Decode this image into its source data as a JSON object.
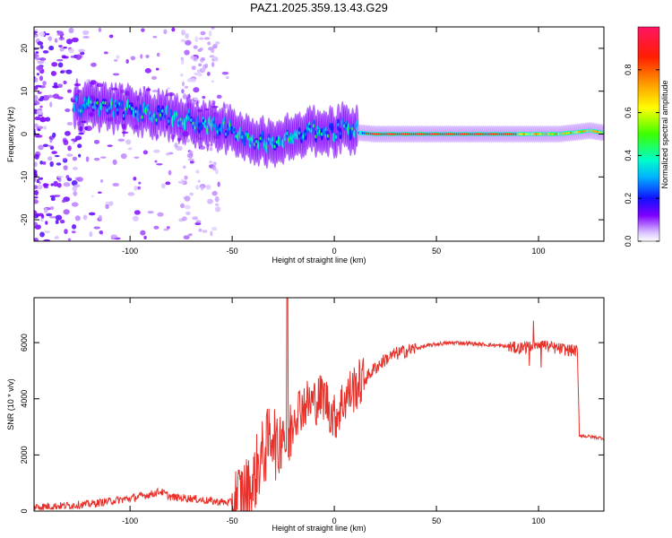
{
  "title": "PAZ1.2025.359.13.43.G29",
  "chart_data": [
    {
      "type": "heatmap",
      "xlabel": "Height of straight line (km)",
      "ylabel": "Frequency (Hz)",
      "xlim": [
        -147,
        132
      ],
      "ylim": [
        -25,
        25
      ],
      "xticks": [
        -100,
        -50,
        0,
        50,
        100
      ],
      "yticks": [
        -20,
        -10,
        0,
        10,
        20
      ],
      "colorbar": {
        "label": "Normalized spectral amplitude",
        "range": [
          0,
          1
        ],
        "ticks": [
          0.0,
          0.2,
          0.4,
          0.6,
          0.8
        ]
      },
      "ridge": {
        "x": [
          -140,
          -120,
          -110,
          -100,
          -90,
          -80,
          -70,
          -60,
          -50,
          -40,
          -35,
          -30,
          -27,
          -20,
          -10,
          0,
          5,
          10,
          12,
          20,
          30,
          50,
          70,
          90,
          100,
          110,
          120,
          125,
          132
        ],
        "frequency": [
          8,
          6.5,
          6,
          5.5,
          5,
          4,
          3,
          2,
          0.5,
          -1,
          -1.5,
          -2,
          -1,
          -0.5,
          0.5,
          0.5,
          1.5,
          1,
          0.3,
          0,
          0,
          0,
          0,
          0,
          0,
          0,
          0.5,
          0.8,
          0.3
        ]
      }
    },
    {
      "type": "line",
      "xlabel": "Height of straight line (km)",
      "ylabel": "SNR (10 * v/v)",
      "xlim": [
        -147,
        132
      ],
      "ylim": [
        0,
        7600
      ],
      "xticks": [
        -100,
        -50,
        0,
        50,
        100
      ],
      "yticks": [
        0,
        2000,
        4000,
        6000
      ],
      "series": [
        {
          "name": "SNR",
          "color": "#e8302a",
          "x": [
            -147,
            -130,
            -120,
            -110,
            -100,
            -90,
            -85,
            -80,
            -70,
            -60,
            -50,
            -45,
            -40,
            -38,
            -35,
            -32,
            -30,
            -28,
            -25,
            -23,
            -22,
            -20,
            -15,
            -10,
            -5,
            0,
            5,
            10,
            15,
            20,
            25,
            30,
            40,
            50,
            60,
            70,
            80,
            90,
            95,
            100,
            105,
            110,
            119,
            120,
            125,
            132
          ],
          "y": [
            150,
            200,
            250,
            350,
            450,
            600,
            700,
            500,
            450,
            350,
            300,
            600,
            800,
            1500,
            2000,
            2500,
            3000,
            2000,
            3200,
            1800,
            2600,
            3500,
            3800,
            3900,
            4100,
            3300,
            4000,
            4400,
            4700,
            5100,
            5400,
            5600,
            5800,
            5950,
            6000,
            5950,
            5900,
            5800,
            5850,
            6000,
            5850,
            5780,
            5700,
            2700,
            2650,
            2600
          ]
        }
      ]
    }
  ]
}
